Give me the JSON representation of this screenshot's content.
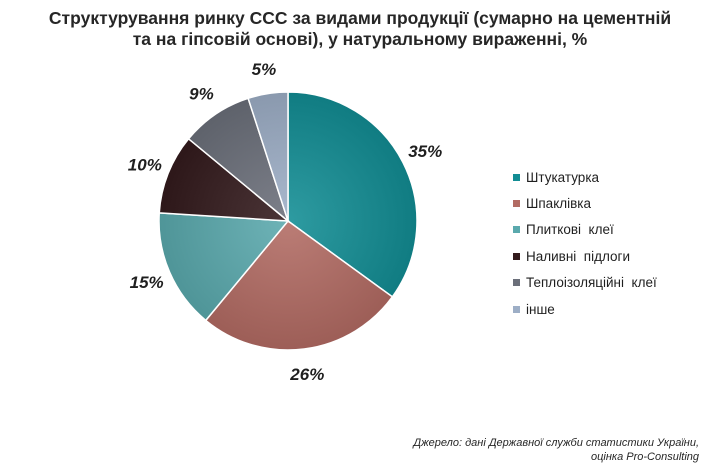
{
  "chart_data": {
    "type": "pie",
    "title": "Структурування ринку ССС за видами продукції (сумарно на цементній та на гіпсовій основі), у натуральному вираженні, %",
    "title_lines": [
      "Структурування ринку ССС за видами продукції (сумарно на цементній",
      "та на гіпсовій основі), у натуральному вираженні, %"
    ],
    "categories": [
      "Штукатурка",
      "Шпаклівка",
      "Плиткові  клеї",
      "Наливні  підлоги",
      "Теплоізоляційні  клеї",
      "інше"
    ],
    "values": [
      35,
      26,
      15,
      10,
      9,
      5
    ],
    "data_labels": [
      "35%",
      "26%",
      "15%",
      "10%",
      "9%",
      "5%"
    ],
    "colors": [
      "#128d94",
      "#b26b63",
      "#5aa9ad",
      "#331a1c",
      "#6b6f7a",
      "#9daec6"
    ],
    "legend_position": "right"
  },
  "source": {
    "line1": "Джерело: дані Державної служби статистики України,",
    "line2": "оцінка Pro-Consulting"
  }
}
